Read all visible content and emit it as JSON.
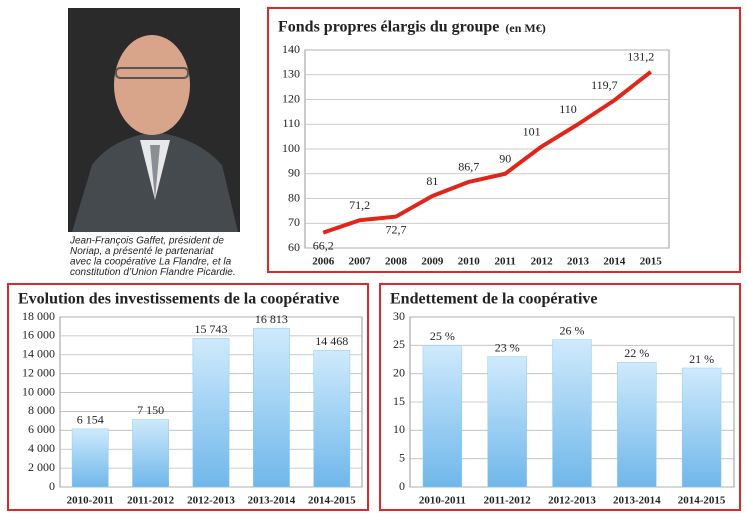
{
  "caption": [
    "Jean-François Gaffet, président de",
    "Noriap, a présenté le partenariat",
    "avec la coopérative La Flandre, et la",
    "constitution d’Union Flandre Picardie."
  ],
  "chart_data": [
    {
      "type": "line",
      "title": "Fonds propres élargis du groupe",
      "unit": "(en M€)",
      "categories": [
        "2006",
        "2007",
        "2008",
        "2009",
        "2010",
        "2011",
        "2012",
        "2013",
        "2014",
        "2015"
      ],
      "values": [
        66.2,
        71.2,
        72.7,
        81,
        86.7,
        90,
        101,
        110,
        119.7,
        131.2
      ],
      "value_labels": [
        "66,2",
        "71,2",
        "72,7",
        "81",
        "86,7",
        "90",
        "101",
        "110",
        "119,7",
        "131,2"
      ],
      "color": "#e0261b",
      "ylim": [
        60,
        140
      ],
      "yticks": [
        60,
        70,
        80,
        90,
        100,
        110,
        120,
        130,
        140
      ],
      "grid": true
    },
    {
      "type": "bar",
      "title": "Evolution des investissements de la coopérative",
      "categories": [
        "2010-2011",
        "2011-2012",
        "2012-2013",
        "2013-2014",
        "2014-2015"
      ],
      "values": [
        6154,
        7150,
        15743,
        16813,
        14468
      ],
      "value_labels": [
        "6 154",
        "7 150",
        "15 743",
        "16 813",
        "14 468"
      ],
      "color": "#8ccaf0",
      "ylim": [
        0,
        18000
      ],
      "yticks": [
        0,
        {
          "value": 2000,
          "label": "2 000"
        },
        {
          "value": 4000,
          "label": "4 000"
        },
        {
          "value": 6000,
          "label": "6 000"
        },
        {
          "value": 8000,
          "label": "8 000"
        },
        {
          "value": 10000,
          "label": "10 000"
        },
        {
          "value": 12000,
          "label": "12 000"
        },
        {
          "value": 14000,
          "label": "14 000"
        },
        {
          "value": 16000,
          "label": "16 000"
        },
        {
          "value": 18000,
          "label": "18 000"
        }
      ],
      "grid": true
    },
    {
      "type": "bar",
      "title": "Endettement de la coopérative",
      "categories": [
        "2010-2011",
        "2011-2012",
        "2012-2013",
        "2013-2014",
        "2014-2015"
      ],
      "values": [
        25,
        23,
        26,
        22,
        21
      ],
      "value_labels": [
        "25 %",
        "23 %",
        "26 %",
        "22 %",
        "21 %"
      ],
      "color": "#8ccaf0",
      "ylim": [
        0,
        30
      ],
      "yticks": [
        0,
        5,
        10,
        15,
        20,
        25,
        30
      ],
      "grid": true
    }
  ]
}
